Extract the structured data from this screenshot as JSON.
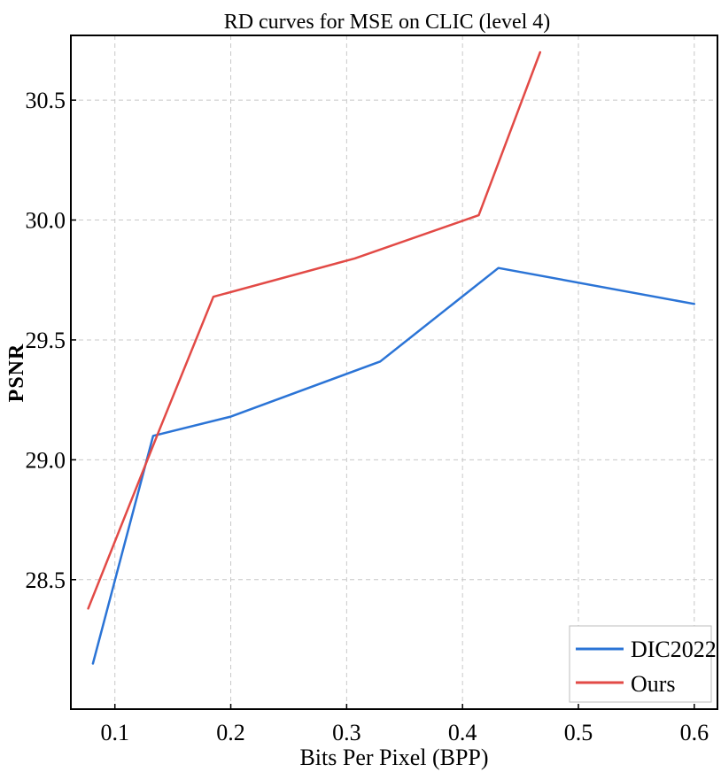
{
  "chart_data": {
    "type": "line",
    "title": "RD curves for MSE on CLIC (level 4)",
    "xlabel": "Bits Per Pixel (BPP)",
    "ylabel": "PSNR",
    "xlim": [
      0.062,
      0.62
    ],
    "ylim": [
      27.96,
      30.77
    ],
    "xticks": [
      0.1,
      0.2,
      0.3,
      0.4,
      0.5,
      0.6
    ],
    "xtick_labels": [
      "0.1",
      "0.2",
      "0.3",
      "0.4",
      "0.5",
      "0.6"
    ],
    "yticks": [
      28.5,
      29.0,
      29.5,
      30.0,
      30.5
    ],
    "ytick_labels": [
      "28.5",
      "29.0",
      "29.5",
      "30.0",
      "30.5"
    ],
    "grid": true,
    "legend_position": "bottom-right",
    "series": [
      {
        "name": "DIC2022",
        "color": "#2b74d6",
        "x": [
          0.081,
          0.133,
          0.2,
          0.329,
          0.431,
          0.6
        ],
        "y": [
          28.15,
          29.1,
          29.18,
          29.41,
          29.8,
          29.65
        ]
      },
      {
        "name": "Ours",
        "color": "#e24a46",
        "x": [
          0.077,
          0.138,
          0.185,
          0.307,
          0.414,
          0.467
        ],
        "y": [
          28.38,
          29.12,
          29.68,
          29.84,
          30.02,
          30.7
        ]
      }
    ]
  }
}
